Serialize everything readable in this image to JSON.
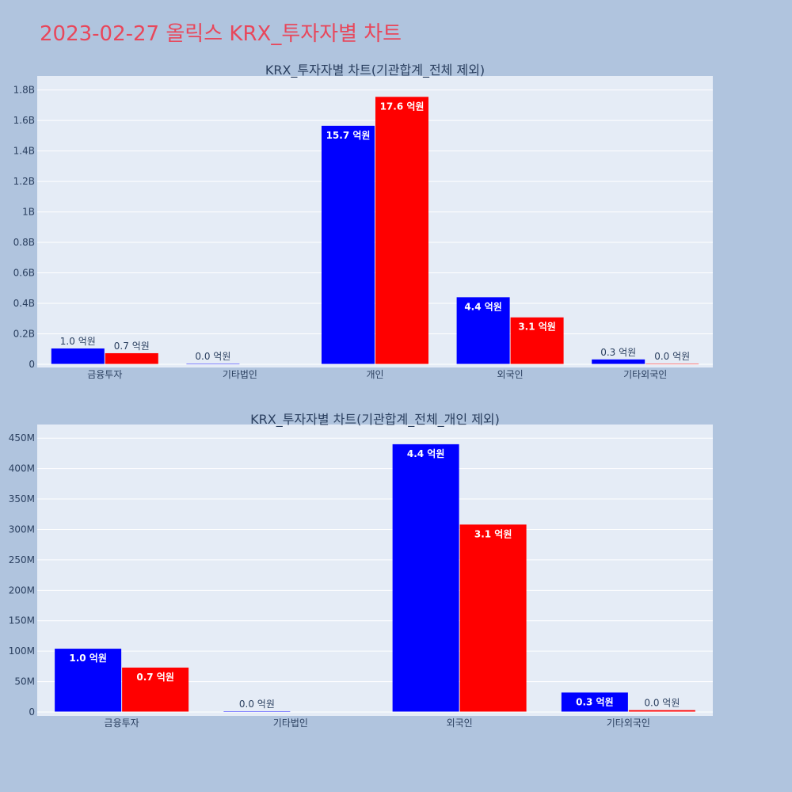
{
  "page_title": "2023-02-27 올릭스 KRX_투자자별 차트",
  "colors": {
    "title": "#e8475b",
    "bg": "#b0c4de",
    "plot_bg": "#e5ecf6",
    "series_a": "#0000ff",
    "series_b": "#ff0000"
  },
  "chart_data": [
    {
      "type": "bar",
      "title": "KRX_투자자별 차트(기관합계_전체 제외)",
      "categories": [
        "금융투자",
        "기타법인",
        "개인",
        "외국인",
        "기타외국인"
      ],
      "ylim": [
        0,
        1850000000
      ],
      "y_ticks": [
        0,
        200000000,
        400000000,
        600000000,
        800000000,
        1000000000,
        1200000000,
        1400000000,
        1600000000,
        1800000000
      ],
      "y_tick_labels": [
        "0",
        "0.2B",
        "0.4B",
        "0.6B",
        "0.8B",
        "1B",
        "1.2B",
        "1.4B",
        "1.6B",
        "1.8B"
      ],
      "grid": true,
      "series": [
        {
          "color": "#0000ff",
          "values": [
            104000000,
            1000000,
            1565000000,
            440000000,
            32000000
          ],
          "labels": [
            "1.0 억원",
            "0.0 억원",
            "15.7 억원",
            "4.4 억원",
            "0.3 억원"
          ]
        },
        {
          "color": "#ff0000",
          "values": [
            73000000,
            0,
            1755000000,
            308000000,
            3000000
          ],
          "labels": [
            "0.7 억원",
            "",
            "17.6 억원",
            "3.1 억원",
            "0.0 억원"
          ]
        }
      ]
    },
    {
      "type": "bar",
      "title": "KRX_투자자별 차트(기관합계_전체_개인 제외)",
      "categories": [
        "금융투자",
        "기타법인",
        "외국인",
        "기타외국인"
      ],
      "ylim": [
        0,
        462000000
      ],
      "y_ticks": [
        0,
        50000000,
        100000000,
        150000000,
        200000000,
        250000000,
        300000000,
        350000000,
        400000000,
        450000000
      ],
      "y_tick_labels": [
        "0",
        "50M",
        "100M",
        "150M",
        "200M",
        "250M",
        "300M",
        "350M",
        "400M",
        "450M"
      ],
      "grid": true,
      "series": [
        {
          "color": "#0000ff",
          "values": [
            104000000,
            1000000,
            440000000,
            32000000
          ],
          "labels": [
            "1.0 억원",
            "0.0 억원",
            "4.4 억원",
            "0.3 억원"
          ]
        },
        {
          "color": "#ff0000",
          "values": [
            73000000,
            0,
            308000000,
            3000000
          ],
          "labels": [
            "0.7 억원",
            "",
            "3.1 억원",
            "0.0 억원"
          ]
        }
      ]
    }
  ]
}
